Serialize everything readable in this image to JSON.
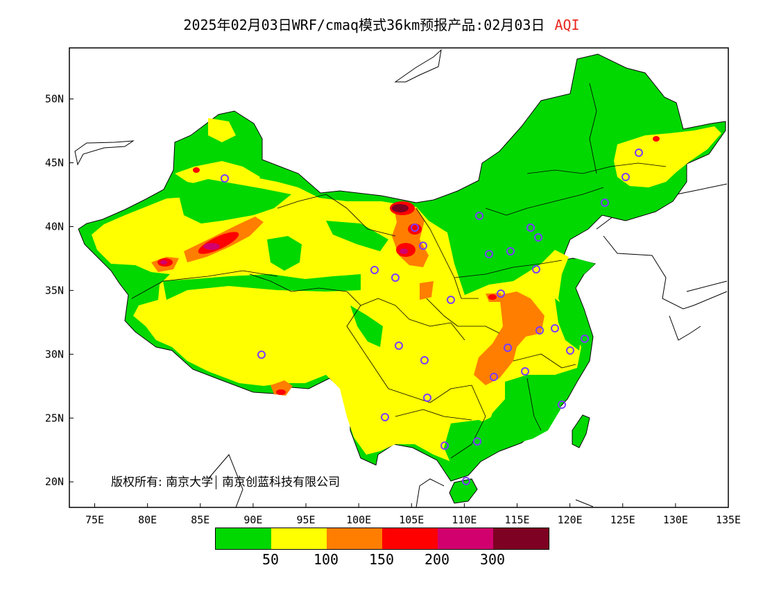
{
  "title": {
    "main": "2025年02月03日WRF/cmaq模式36km预报产品:02月03日",
    "variable": "AQI"
  },
  "copyright": {
    "prefix": "版权所有:",
    "org1": "南京大学",
    "org2": "南京创蓝科技有限公司"
  },
  "axes": {
    "x_ticks": [
      "75E",
      "80E",
      "85E",
      "90E",
      "95E",
      "100E",
      "105E",
      "110E",
      "115E",
      "120E",
      "125E",
      "130E",
      "135E"
    ],
    "y_ticks": [
      "50N",
      "45N",
      "40N",
      "35N",
      "30N",
      "25N",
      "20N"
    ]
  },
  "legend": {
    "colors": [
      "#00d800",
      "#ffff00",
      "#ff7e00",
      "#ff0000",
      "#d2006e",
      "#7e0023"
    ],
    "labels": [
      "50",
      "100",
      "150",
      "200",
      "300"
    ]
  },
  "colors": {
    "good": "#00d800",
    "moderate": "#ffff00",
    "unhealthy_sensitive": "#ff7e00",
    "unhealthy": "#ff0000",
    "very_unhealthy": "#d2006e",
    "hazardous": "#7e0023",
    "title_accent": "#e8281f",
    "station_marker": "#7a3cff"
  }
}
